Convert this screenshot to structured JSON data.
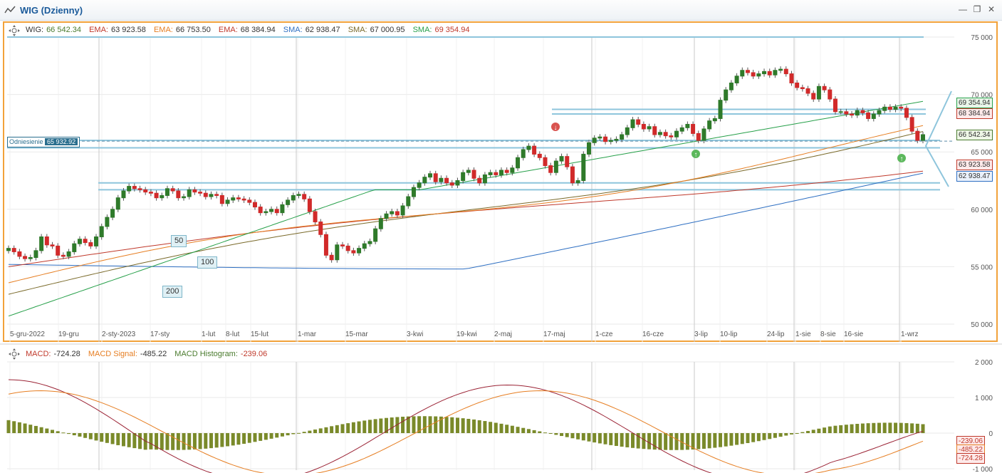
{
  "window": {
    "title": "WIG (Dzienny)"
  },
  "legend": [
    {
      "label": "WIG:",
      "value": "66 542.34",
      "color": "#4a7b2e"
    },
    {
      "label": "EMA:",
      "value": "63 923.58",
      "color": "#c0392b"
    },
    {
      "label": "EMA:",
      "value": "66 753.50",
      "color": "#e67e22"
    },
    {
      "label": "EMA:",
      "value": "68 384.94",
      "color": "#c0392b"
    },
    {
      "label": "SMA:",
      "value": "62 938.47",
      "color": "#2e6fc2"
    },
    {
      "label": "SMA:",
      "value": "67 000.95",
      "color": "#7a6a2a"
    },
    {
      "label": "SMA:",
      "value": "69 354.94",
      "color": "#27a04a"
    }
  ],
  "macd_legend": [
    {
      "label": "MACD:",
      "value": "-724.28",
      "color": "#c0392b"
    },
    {
      "label": "MACD Signal:",
      "value": "-485.22",
      "color": "#e67e22"
    },
    {
      "label": "MACD Histogram:",
      "value": "-239.06",
      "color": "#c0392b"
    }
  ],
  "reference": {
    "label": "Odniesienie",
    "value": "65 932.92"
  },
  "ma_labels": [
    "50",
    "100",
    "200"
  ],
  "price_badges": [
    {
      "text": "69 354.94",
      "color": "#27a04a",
      "fill": "#e9f6e9"
    },
    {
      "text": "68 384.94",
      "color": "#c0392b",
      "fill": "#fdeaea"
    },
    {
      "text": "66 542.34",
      "color": "#4a7b2e",
      "fill": "#eef6e6"
    },
    {
      "text": "63 923.58",
      "color": "#c0392b",
      "fill": "#fdeaea"
    },
    {
      "text": "62 938.47",
      "color": "#2e6fc2",
      "fill": "#eaf1fb"
    }
  ],
  "macd_badges": [
    {
      "text": "-239.06",
      "color": "#c0392b"
    },
    {
      "text": "-485.22",
      "color": "#e67e22"
    },
    {
      "text": "-724.28",
      "color": "#c0392b"
    }
  ],
  "chart_data": [
    {
      "type": "candlestick",
      "y_ticks": [
        "75 000",
        "70 000",
        "65 000",
        "60 000",
        "55 000",
        "50 000"
      ],
      "ylim": [
        49500,
        76000
      ],
      "x_tick_labels": [
        "5-gru-2022",
        "19-gru",
        "2-sty-2023",
        "17-sty",
        "1-lut",
        "8-lut",
        "15-lut",
        "1-mar",
        "15-mar",
        "3-kwi",
        "19-kwi",
        "2-maj",
        "17-maj",
        "1-cze",
        "16-cze",
        "3-lip",
        "10-lip",
        "24-lip",
        "1-sie",
        "8-sie",
        "16-sie",
        "1-wrz"
      ],
      "close": [
        56600,
        56300,
        55900,
        55700,
        55800,
        56400,
        57600,
        56900,
        56800,
        56000,
        55900,
        56300,
        57000,
        57400,
        57100,
        56800,
        57600,
        58500,
        59300,
        60000,
        61000,
        61600,
        62000,
        61800,
        61700,
        61500,
        61400,
        61000,
        61200,
        61800,
        61600,
        61000,
        61100,
        61700,
        61500,
        61400,
        61100,
        61300,
        61200,
        60500,
        60800,
        61000,
        60900,
        60800,
        60600,
        60200,
        59700,
        59800,
        60000,
        59700,
        60400,
        60800,
        61200,
        61300,
        60900,
        59800,
        58900,
        57800,
        56000,
        55600,
        56900,
        56800,
        56400,
        56200,
        56600,
        57000,
        57200,
        58300,
        59200,
        59600,
        59800,
        59500,
        60300,
        61100,
        61900,
        62300,
        62800,
        63100,
        62400,
        62700,
        62300,
        62100,
        62500,
        63200,
        63400,
        62700,
        62300,
        63000,
        63200,
        63000,
        63400,
        63200,
        63600,
        64500,
        65200,
        65500,
        64800,
        64500,
        63800,
        63200,
        64200,
        64600,
        63700,
        62300,
        62500,
        64800,
        65800,
        66200,
        66300,
        65900,
        66000,
        66100,
        66500,
        67100,
        67800,
        67400,
        67000,
        67200,
        66500,
        66700,
        66400,
        66300,
        66800,
        67100,
        67400,
        66600,
        66000,
        67000,
        67700,
        67900,
        69500,
        70400,
        71000,
        71600,
        72100,
        71900,
        71600,
        71800,
        72000,
        71700,
        72100,
        72200,
        71800,
        71000,
        70600,
        70500,
        70100,
        69600,
        70700,
        70400,
        69600,
        68500,
        68500,
        68300,
        68200,
        68600,
        68400,
        67900,
        68300,
        68600,
        68900,
        68700,
        68900,
        68800,
        68000,
        66800,
        66000,
        66500
      ]
    },
    {
      "type": "macd",
      "y_ticks": [
        "2 000",
        "1 000",
        "0",
        "-1 000"
      ],
      "ylim": [
        -1000,
        2000
      ]
    }
  ]
}
